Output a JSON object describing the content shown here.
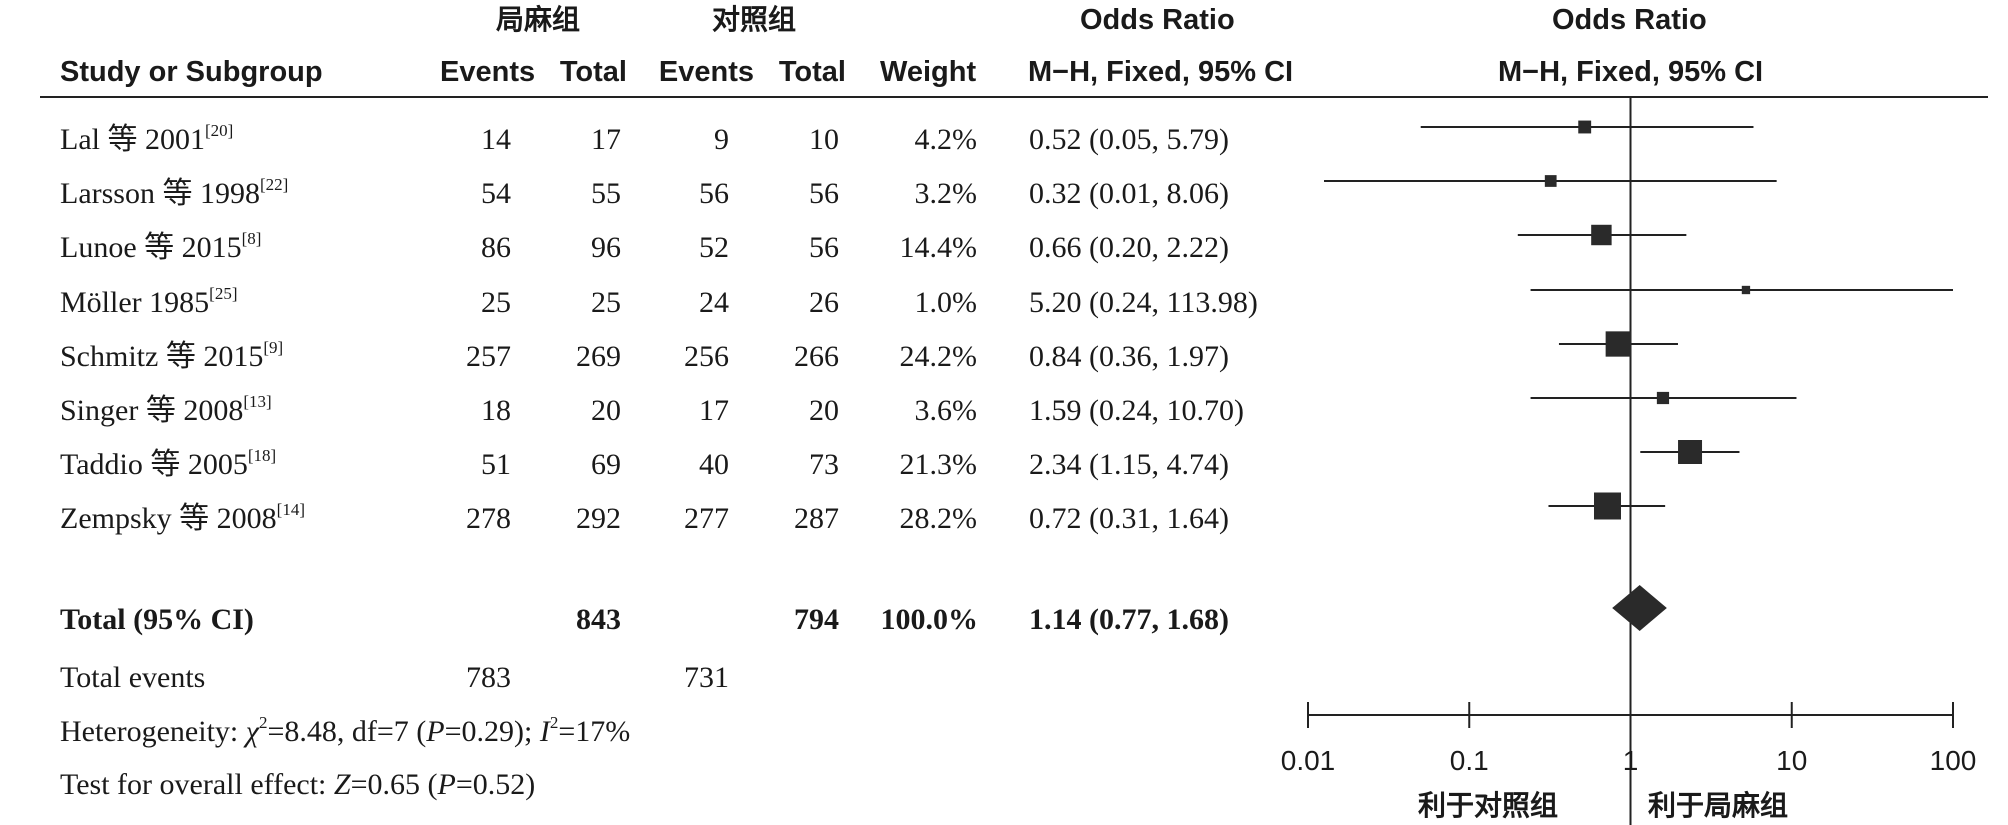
{
  "headers": {
    "group_exp": "局麻组",
    "group_ctrl": "对照组",
    "odds_ratio_1": "Odds Ratio",
    "odds_ratio_2": "Odds Ratio",
    "study": "Study or Subgroup",
    "events_exp": "Events",
    "total_exp": "Total",
    "events_ctrl": "Events",
    "total_ctrl": "Total",
    "weight": "Weight",
    "method_1": "M−H, Fixed, 95% CI",
    "method_2": "M−H, Fixed, 95% CI"
  },
  "studies": [
    {
      "name": "Lal 等 2001",
      "ref": "[20]",
      "e1": "14",
      "t1": "17",
      "e2": "9",
      "t2": "10",
      "weight": "4.2%",
      "ci": "0.52 (0.05, 5.79)"
    },
    {
      "name": "Larsson 等 1998",
      "ref": "[22]",
      "e1": "54",
      "t1": "55",
      "e2": "56",
      "t2": "56",
      "weight": "3.2%",
      "ci": "0.32 (0.01, 8.06)"
    },
    {
      "name": "Lunoe 等 2015",
      "ref": "[8]",
      "e1": "86",
      "t1": "96",
      "e2": "52",
      "t2": "56",
      "weight": "14.4%",
      "ci": "0.66 (0.20, 2.22)"
    },
    {
      "name": "Möller 1985",
      "ref": "[25]",
      "e1": "25",
      "t1": "25",
      "e2": "24",
      "t2": "26",
      "weight": "1.0%",
      "ci": "5.20 (0.24, 113.98)"
    },
    {
      "name": "Schmitz 等 2015",
      "ref": "[9]",
      "e1": "257",
      "t1": "269",
      "e2": "256",
      "t2": "266",
      "weight": "24.2%",
      "ci": "0.84 (0.36, 1.97)"
    },
    {
      "name": "Singer 等 2008",
      "ref": "[13]",
      "e1": "18",
      "t1": "20",
      "e2": "17",
      "t2": "20",
      "weight": "3.6%",
      "ci": "1.59 (0.24, 10.70)"
    },
    {
      "name": "Taddio 等 2005",
      "ref": "[18]",
      "e1": "51",
      "t1": "69",
      "e2": "40",
      "t2": "73",
      "weight": "21.3%",
      "ci": "2.34 (1.15, 4.74)"
    },
    {
      "name": "Zempsky 等 2008",
      "ref": "[14]",
      "e1": "278",
      "t1": "292",
      "e2": "277",
      "t2": "287",
      "weight": "28.2%",
      "ci": "0.72 (0.31, 1.64)"
    }
  ],
  "total": {
    "label": "Total (95% CI)",
    "t1": "843",
    "t2": "794",
    "weight": "100.0%",
    "ci": "1.14 (0.77, 1.68)"
  },
  "total_events": {
    "label": "Total events",
    "e1": "783",
    "e2": "731"
  },
  "heterogeneity": {
    "prefix": "Heterogeneity: ",
    "chi": "χ",
    "chi_val": "=8.48, df=7 (",
    "p": "P",
    "p_val": "=0.29); ",
    "i": "I",
    "i_val": "=17%"
  },
  "overall": {
    "prefix": "Test for overall effect: ",
    "z": "Z",
    "z_val": "=0.65 (",
    "p": "P",
    "p_val": "=0.52)"
  },
  "chart_data": {
    "type": "forest",
    "xscale": "log",
    "xlim": [
      0.01,
      100
    ],
    "xticks": [
      "0.01",
      "0.1",
      "1",
      "10",
      "100"
    ],
    "favours_left": "利于对照组",
    "favours_right": "利于局麻组",
    "points": [
      {
        "or": 0.52,
        "lo": 0.05,
        "hi": 5.79,
        "weight": 4.2
      },
      {
        "or": 0.32,
        "lo": 0.01,
        "hi": 8.06,
        "weight": 3.2
      },
      {
        "or": 0.66,
        "lo": 0.2,
        "hi": 2.22,
        "weight": 14.4
      },
      {
        "or": 5.2,
        "lo": 0.24,
        "hi": 113.98,
        "weight": 1.0
      },
      {
        "or": 0.84,
        "lo": 0.36,
        "hi": 1.97,
        "weight": 24.2
      },
      {
        "or": 1.59,
        "lo": 0.24,
        "hi": 10.7,
        "weight": 3.6
      },
      {
        "or": 2.34,
        "lo": 1.15,
        "hi": 4.74,
        "weight": 21.3
      },
      {
        "or": 0.72,
        "lo": 0.31,
        "hi": 1.64,
        "weight": 28.2
      }
    ],
    "summary": {
      "or": 1.14,
      "lo": 0.77,
      "hi": 1.68
    }
  }
}
